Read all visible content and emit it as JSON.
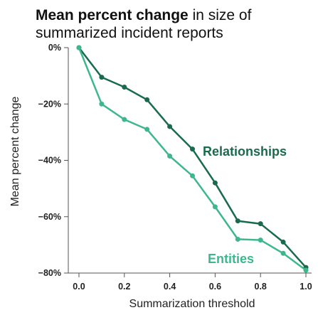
{
  "chart_data": {
    "type": "line",
    "title_bold": "Mean percent change",
    "title_rest": " in size of",
    "title_line2": "summarized incident reports",
    "xlabel": "Summarization threshold",
    "ylabel": "Mean percent change",
    "x": [
      0.0,
      0.1,
      0.2,
      0.3,
      0.4,
      0.5,
      0.6,
      0.7,
      0.8,
      0.9,
      1.0
    ],
    "xlim": [
      0.0,
      1.0
    ],
    "ylim": [
      -80,
      0
    ],
    "x_ticks": [
      "0.0",
      "0.2",
      "0.4",
      "0.6",
      "0.8",
      "1.0"
    ],
    "y_ticks": [
      "0%",
      "−20%",
      "−40%",
      "−60%",
      "−80%"
    ],
    "y_tick_values": [
      0,
      -20,
      -40,
      -60,
      -80
    ],
    "x_tick_values": [
      0.0,
      0.2,
      0.4,
      0.6,
      0.8,
      1.0
    ],
    "grid": false,
    "series": [
      {
        "name": "Relationships",
        "color": "#1a6b4e",
        "values": [
          0,
          -10.5,
          -14,
          -18.5,
          -28,
          -36,
          -48,
          -61.5,
          -62.5,
          -69,
          -78
        ]
      },
      {
        "name": "Entities",
        "color": "#3db88c",
        "values": [
          0,
          -20,
          -25.5,
          -29,
          -38.5,
          -45.5,
          -56.5,
          -68,
          -68.3,
          -73,
          -79
        ]
      }
    ]
  }
}
